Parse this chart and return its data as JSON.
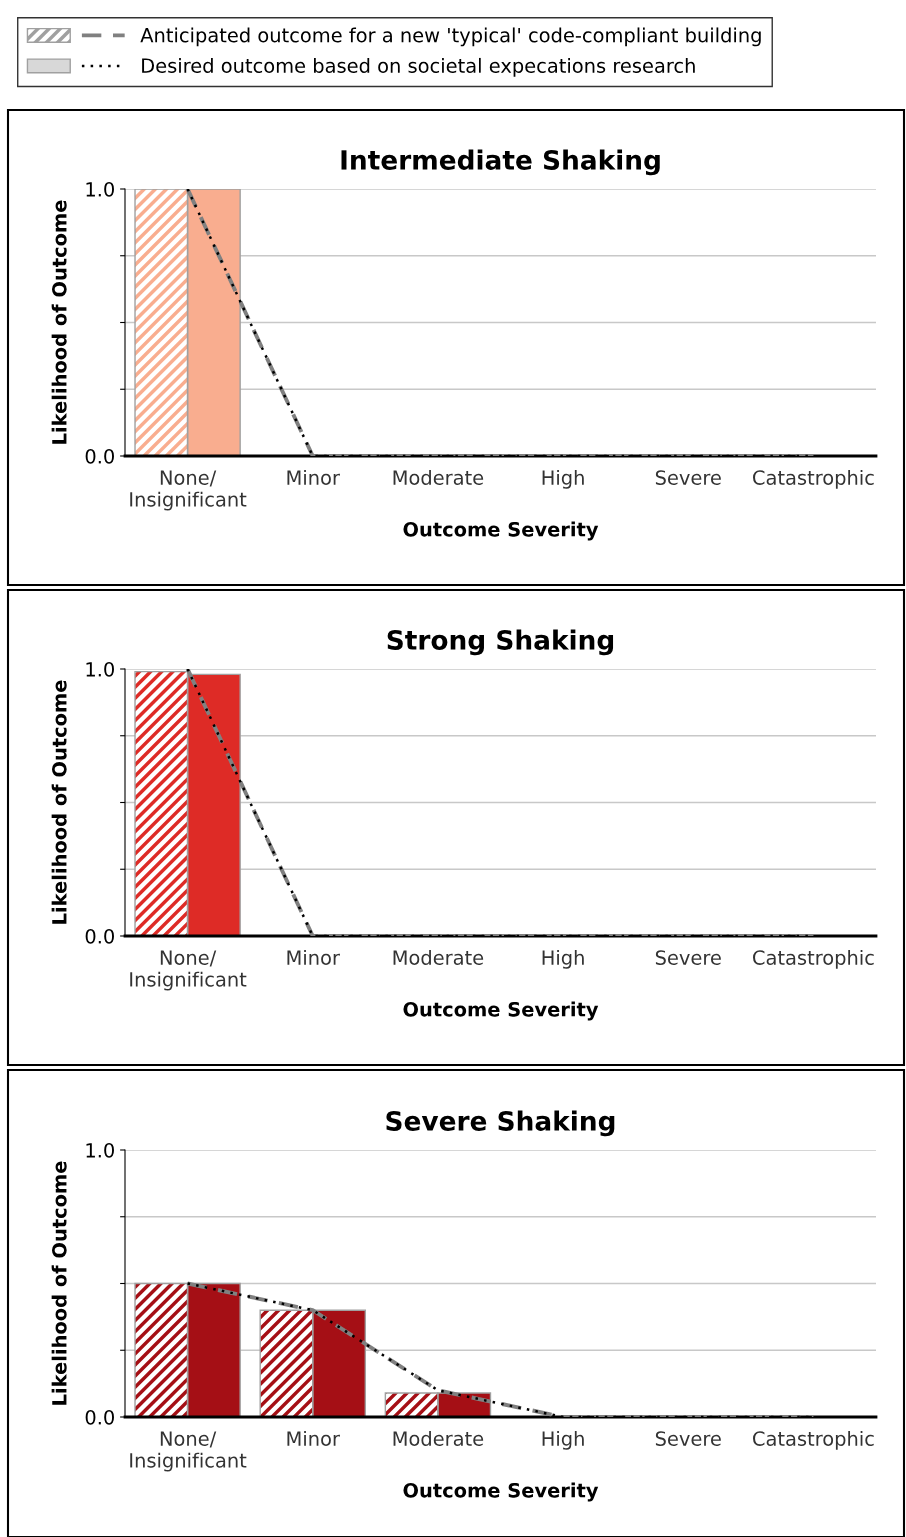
{
  "chart_data": [
    {
      "type": "bar",
      "title": "Intermediate Shaking",
      "xlabel": "Outcome Severity",
      "ylabel": "Likelihood of Outcome",
      "categories": [
        "None/\nInsignificant",
        "Minor",
        "Moderate",
        "High",
        "Severe",
        "Catastrophic"
      ],
      "ylim": [
        0,
        1
      ],
      "yticks": [
        {
          "value": 0,
          "label": "0.0"
        },
        {
          "value": 0.25,
          "label": null
        },
        {
          "value": 0.5,
          "label": null
        },
        {
          "value": 0.75,
          "label": null
        },
        {
          "value": 1,
          "label": "1.0"
        }
      ],
      "grid": "y",
      "legend": "top",
      "series": [
        {
          "type": "bar",
          "color": "#f9ad8f",
          "values": [
            1.0,
            0,
            0,
            0,
            0,
            0
          ]
        },
        {
          "type": "bar",
          "color": "#f9ad8f",
          "values": [
            1.0,
            0,
            0,
            0,
            0,
            0
          ]
        },
        {
          "type": "line",
          "name": "Anticipated outcome for a new 'typical' code-compliant building",
          "color": "#808080",
          "line_style": "dashed",
          "values": [
            1.0,
            0,
            0,
            0,
            0,
            0
          ]
        },
        {
          "type": "line",
          "name": "Desired outcome based on societal expecations research",
          "color": "#000000",
          "line_style": "dotted",
          "values": [
            1.0,
            0,
            0,
            0,
            0,
            0
          ]
        }
      ]
    },
    {
      "type": "bar",
      "title": "Strong Shaking",
      "xlabel": "Outcome Severity",
      "ylabel": "Likelihood of Outcome",
      "categories": [
        "None/\nInsignificant",
        "Minor",
        "Moderate",
        "High",
        "Severe",
        "Catastrophic"
      ],
      "ylim": [
        0,
        1
      ],
      "yticks": [
        {
          "value": 0,
          "label": "0.0"
        },
        {
          "value": 0.25,
          "label": null
        },
        {
          "value": 0.5,
          "label": null
        },
        {
          "value": 0.75,
          "label": null
        },
        {
          "value": 1,
          "label": "1.0"
        }
      ],
      "grid": "y",
      "series": [
        {
          "type": "bar",
          "color": "#de2b26",
          "values": [
            0.99,
            null,
            0,
            0,
            0,
            0
          ]
        },
        {
          "type": "bar",
          "color": "#de2b26",
          "values": [
            0.98,
            null,
            0,
            0,
            0,
            0
          ]
        },
        {
          "type": "line",
          "color": "#808080",
          "line_style": "dashed",
          "values": [
            1.0,
            0,
            0,
            0,
            0,
            0
          ]
        },
        {
          "type": "line",
          "color": "#000000",
          "line_style": "dotted",
          "values": [
            1.0,
            0,
            0,
            0,
            0,
            0
          ]
        }
      ]
    },
    {
      "type": "bar",
      "title": "Severe Shaking",
      "xlabel": "Outcome Severity",
      "ylabel": "Likelihood of Outcome",
      "categories": [
        "None/\nInsignificant",
        "Minor",
        "Moderate",
        "High",
        "Severe",
        "Catastrophic"
      ],
      "ylim": [
        0,
        1
      ],
      "yticks": [
        {
          "value": 0,
          "label": "0.0"
        },
        {
          "value": 0.25,
          "label": null
        },
        {
          "value": 0.5,
          "label": null
        },
        {
          "value": 0.75,
          "label": null
        },
        {
          "value": 1,
          "label": "1.0"
        }
      ],
      "grid": "y",
      "series": [
        {
          "type": "bar",
          "color": "#a50f15",
          "values": [
            0.5,
            0.4,
            0.09,
            0,
            0,
            0
          ]
        },
        {
          "type": "bar",
          "color": "#a50f15",
          "values": [
            0.5,
            0.4,
            0.09,
            0,
            0,
            0
          ]
        },
        {
          "type": "line",
          "color": "#808080",
          "line_style": "dashed",
          "values": [
            0.5,
            0.4,
            0.1,
            0,
            0,
            0
          ]
        },
        {
          "type": "line",
          "color": "#000000",
          "line_style": "dotted",
          "values": [
            0.5,
            0.4,
            0.1,
            0,
            0,
            0
          ]
        }
      ]
    }
  ]
}
